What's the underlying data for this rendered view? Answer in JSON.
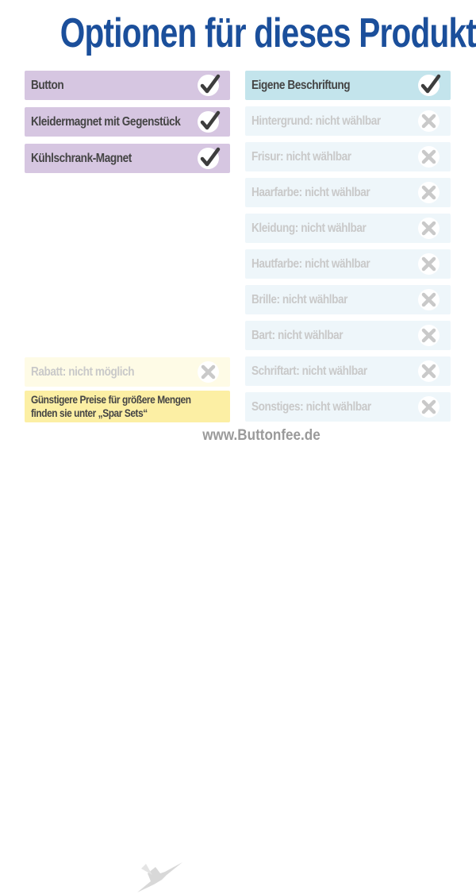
{
  "title": "Optionen für dieses Produkt:",
  "left_options": [
    {
      "label": "Button",
      "status": "check-icon"
    },
    {
      "label": "Kleidermagnet mit Gegenstück",
      "status": "check-icon"
    },
    {
      "label": "Kühlschrank-Magnet",
      "status": "check-icon"
    }
  ],
  "discount": {
    "label": "Rabatt: nicht möglich",
    "status": "x-icon"
  },
  "note": "Günstigere Preise für größere Mengen finden sie unter „Spar Sets“",
  "right_options": [
    {
      "label": "Eigene Beschriftung",
      "status": "check-icon"
    },
    {
      "label": "Hintergrund: nicht wählbar",
      "status": "x-icon"
    },
    {
      "label": "Frisur: nicht wählbar",
      "status": "x-icon"
    },
    {
      "label": "Haarfarbe: nicht wählbar",
      "status": "x-icon"
    },
    {
      "label": "Kleidung: nicht wählbar",
      "status": "x-icon"
    },
    {
      "label": "Hautfarbe: nicht wählbar",
      "status": "x-icon"
    },
    {
      "label": "Brille: nicht wählbar",
      "status": "x-icon"
    },
    {
      "label": "Bart: nicht wählbar",
      "status": "x-icon"
    },
    {
      "label": "Schriftart: nicht wählbar",
      "status": "x-icon"
    },
    {
      "label": "Sonstiges: nicht wählbar",
      "status": "x-icon"
    }
  ],
  "footer": {
    "url": "www.Buttonfee.de",
    "logo": "fairy-icon"
  },
  "colors": {
    "title": "#1b4f9b",
    "purple": "#d6c6e1",
    "blue": "#c3e4ec",
    "disabled": "#eef6fa",
    "yellow": "#fcefa4"
  }
}
